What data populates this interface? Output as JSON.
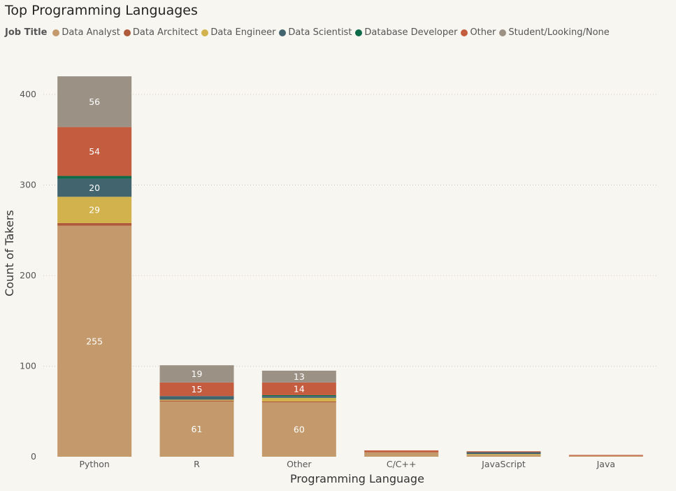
{
  "title": "Top Programming Languages",
  "legend": {
    "title": "Job Title",
    "items": [
      {
        "label": "Data Analyst",
        "color": "#c49a6c"
      },
      {
        "label": "Data Architect",
        "color": "#b05a3c"
      },
      {
        "label": "Data Engineer",
        "color": "#d2b24c"
      },
      {
        "label": "Data Scientist",
        "color": "#41646f"
      },
      {
        "label": "Database Developer",
        "color": "#0e6b4a"
      },
      {
        "label": "Other",
        "color": "#c45d3f"
      },
      {
        "label": "Student/Looking/None",
        "color": "#9c9185"
      }
    ]
  },
  "chart_data": {
    "type": "bar",
    "stacked": true,
    "title": "Top Programming Languages",
    "xlabel": "Programming Language",
    "ylabel": "Count of Takers",
    "categories": [
      "Python",
      "R",
      "Other",
      "C/C++",
      "JavaScript",
      "Java"
    ],
    "ylim": [
      0,
      420
    ],
    "yticks": [
      0,
      100,
      200,
      300,
      400
    ],
    "grid": true,
    "legend_position": "top-left",
    "series": [
      {
        "name": "Data Analyst",
        "color": "#c49a6c",
        "values": [
          255,
          61,
          60,
          5,
          2,
          1
        ]
      },
      {
        "name": "Data Architect",
        "color": "#b05a3c",
        "values": [
          3,
          1,
          1,
          0,
          0,
          0
        ]
      },
      {
        "name": "Data Engineer",
        "color": "#d2b24c",
        "values": [
          29,
          1,
          4,
          0,
          1,
          0
        ]
      },
      {
        "name": "Data Scientist",
        "color": "#41646f",
        "values": [
          20,
          4,
          2,
          0,
          2,
          0
        ]
      },
      {
        "name": "Database Developer",
        "color": "#0e6b4a",
        "values": [
          3,
          0,
          1,
          0,
          0,
          0
        ]
      },
      {
        "name": "Other",
        "color": "#c45d3f",
        "values": [
          54,
          15,
          14,
          2,
          1,
          1
        ]
      },
      {
        "name": "Student/Looking/None",
        "color": "#9c9185",
        "values": [
          56,
          19,
          13,
          0,
          0,
          0
        ]
      }
    ],
    "data_labels": [
      {
        "category": "Python",
        "series": "Data Analyst",
        "text": "255"
      },
      {
        "category": "Python",
        "series": "Data Engineer",
        "text": "29"
      },
      {
        "category": "Python",
        "series": "Data Scientist",
        "text": "20"
      },
      {
        "category": "Python",
        "series": "Other",
        "text": "54"
      },
      {
        "category": "Python",
        "series": "Student/Looking/None",
        "text": "56"
      },
      {
        "category": "R",
        "series": "Data Analyst",
        "text": "61"
      },
      {
        "category": "R",
        "series": "Other",
        "text": "15"
      },
      {
        "category": "R",
        "series": "Student/Looking/None",
        "text": "19"
      },
      {
        "category": "Other",
        "series": "Data Analyst",
        "text": "60"
      },
      {
        "category": "Other",
        "series": "Other",
        "text": "14"
      },
      {
        "category": "Other",
        "series": "Student/Looking/None",
        "text": "13"
      }
    ]
  }
}
